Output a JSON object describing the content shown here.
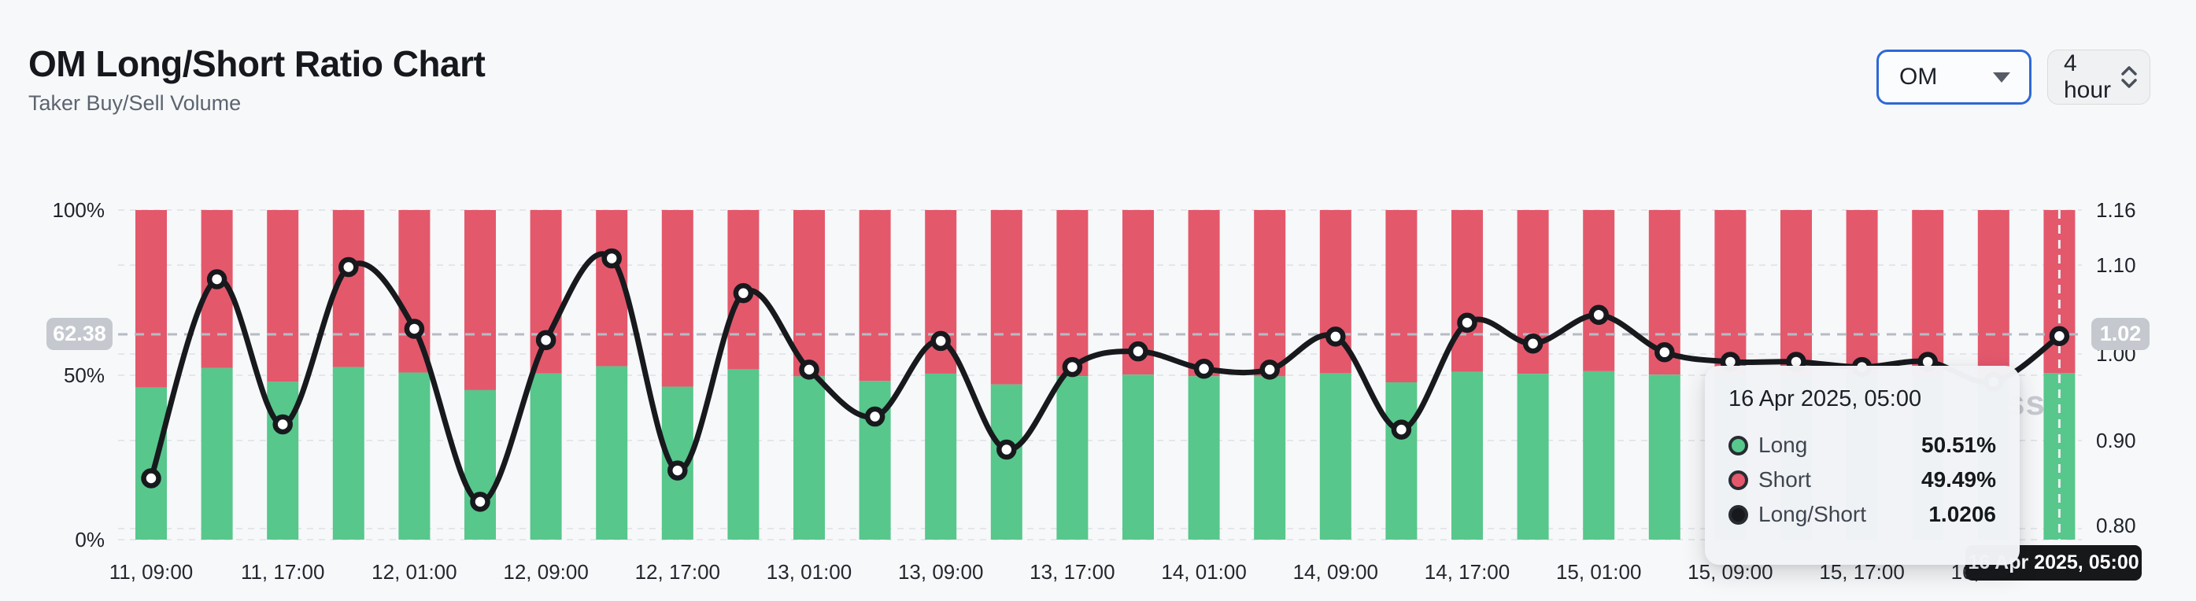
{
  "header": {
    "title": "OM Long/Short Ratio Chart",
    "subtitle": "Taker Buy/Sell Volume"
  },
  "controls": {
    "symbol_select": {
      "value": "OM"
    },
    "interval_select": {
      "value": "4 hour"
    }
  },
  "chart_data": {
    "type": "bar",
    "subtype": "stacked-percent-bars-with-ratio-line",
    "categories": [
      "11, 09:00",
      "11, 13:00",
      "11, 17:00",
      "11, 21:00",
      "12, 01:00",
      "12, 05:00",
      "12, 09:00",
      "12, 13:00",
      "12, 17:00",
      "12, 21:00",
      "13, 01:00",
      "13, 05:00",
      "13, 09:00",
      "13, 13:00",
      "13, 17:00",
      "13, 21:00",
      "14, 01:00",
      "14, 05:00",
      "14, 09:00",
      "14, 13:00",
      "14, 17:00",
      "14, 21:00",
      "15, 01:00",
      "15, 05:00",
      "15, 09:00",
      "15, 13:00",
      "15, 17:00",
      "15, 21:00",
      "16, 01:00",
      "16, 05:00"
    ],
    "x_tick_labels": [
      "11, 09:00",
      "11, 17:00",
      "12, 01:00",
      "12, 09:00",
      "12, 17:00",
      "13, 01:00",
      "13, 09:00",
      "13, 17:00",
      "14, 01:00",
      "14, 09:00",
      "14, 17:00",
      "15, 01:00",
      "15, 09:00",
      "15, 17:00",
      "16, 01:00"
    ],
    "series": [
      {
        "name": "Long",
        "unit": "%",
        "color": "#57c78c",
        "values": [
          46.15,
          52.06,
          47.89,
          52.38,
          50.71,
          45.36,
          50.4,
          52.61,
          46.41,
          51.69,
          49.55,
          48.13,
          50.37,
          47.09,
          49.62,
          50.07,
          49.57,
          49.55,
          50.5,
          47.73,
          50.88,
          50.3,
          51.1,
          50.05,
          49.77,
          49.77,
          49.62,
          49.77,
          49.19,
          50.51
        ]
      },
      {
        "name": "Short",
        "unit": "%",
        "color": "#e4586c",
        "values": [
          53.85,
          47.94,
          52.11,
          47.62,
          49.29,
          54.64,
          49.6,
          47.39,
          53.59,
          48.31,
          50.45,
          51.87,
          49.63,
          52.91,
          50.38,
          49.93,
          50.43,
          50.45,
          49.5,
          52.27,
          49.12,
          49.7,
          48.9,
          49.95,
          50.23,
          50.23,
          50.38,
          50.23,
          50.81,
          49.49
        ]
      },
      {
        "name": "Long/Short",
        "axis": "right",
        "color": "#17191d",
        "values": [
          0.857,
          1.086,
          0.919,
          1.1,
          1.029,
          0.83,
          1.016,
          1.11,
          0.866,
          1.07,
          0.982,
          0.928,
          1.015,
          0.89,
          0.985,
          1.003,
          0.983,
          0.982,
          1.02,
          0.913,
          1.036,
          1.012,
          1.045,
          1.002,
          0.991,
          0.991,
          0.985,
          0.991,
          0.968,
          1.0206
        ]
      }
    ],
    "left_axis": {
      "ticks": [
        "100%",
        "50%",
        "0%"
      ],
      "range": [
        0,
        100
      ]
    },
    "right_axis": {
      "ticks": [
        "1.16",
        "1.10",
        "1.00",
        "0.90",
        "0.80"
      ],
      "range": [
        0.786,
        1.165
      ]
    },
    "grid": true,
    "legend_position": "none"
  },
  "crosshair": {
    "left_label": "62.38",
    "right_label": "1.02",
    "ratio_value": 1.0206
  },
  "tooltip": {
    "title": "16 Apr 2025, 05:00",
    "rows": [
      {
        "label": "Long",
        "value": "50.51%"
      },
      {
        "label": "Short",
        "value": "49.49%"
      },
      {
        "label": "Long/Short",
        "value": "1.0206"
      }
    ]
  },
  "x_crosshair_label": "16 Apr 2025, 05:00",
  "watermark": "ss"
}
